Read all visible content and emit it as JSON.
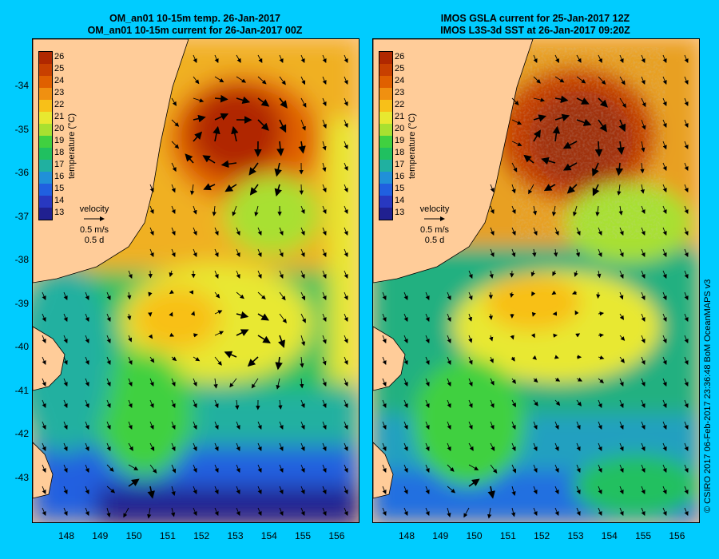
{
  "panels": [
    {
      "title_line1": "OM_an01 10-15m temp. 26-Jan-2017",
      "title_line2": "OM_an01 10-15m current for 26-Jan-2017 00Z"
    },
    {
      "title_line1": "IMOS GSLA current for 25-Jan-2017 12Z",
      "title_line2": "IMOS L3S-3d SST at 26-Jan-2017 09:20Z"
    }
  ],
  "lat_labels": [
    "-34",
    "-35",
    "-36",
    "-37",
    "-38",
    "-39",
    "-40",
    "-41",
    "-42",
    "-43"
  ],
  "lon_labels": [
    "148",
    "149",
    "150",
    "151",
    "152",
    "153",
    "154",
    "155",
    "156"
  ],
  "colorbar": {
    "title": "temperature (°C)",
    "ticks": [
      "26",
      "25",
      "24",
      "23",
      "22",
      "21",
      "20",
      "19",
      "18",
      "17",
      "16",
      "15",
      "14",
      "13"
    ],
    "colors": [
      "#b02800",
      "#c84000",
      "#e06000",
      "#f09010",
      "#f8c018",
      "#e8e830",
      "#a8e030",
      "#40d040",
      "#20c060",
      "#20b0a0",
      "#2090d8",
      "#2060e0",
      "#2838c0",
      "#202090"
    ]
  },
  "velocity_key": {
    "label": "velocity",
    "speed": "0.5 m/s",
    "duration": "0.5 d"
  },
  "credit": "© CSIRO 2017   06-Feb-2017 23:36:48 BoM OceanMAPS v3",
  "colors": {
    "background": "#00ccff",
    "land": "#ffcc99"
  }
}
